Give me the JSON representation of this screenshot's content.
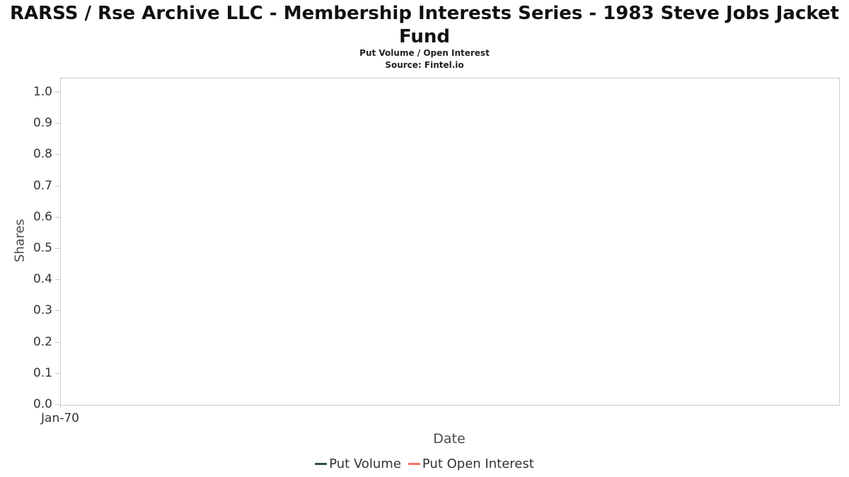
{
  "title": "RARSS / Rse Archive LLC - Membership Interests Series -  1983 Steve Jobs Jacket Fund",
  "subtitle": "Put Volume / Open Interest",
  "source": "Source: Fintel.io",
  "chart_data": {
    "type": "line",
    "title": "RARSS / Rse Archive LLC - Membership Interests Series -  1983 Steve Jobs Jacket Fund",
    "subtitle": "Put Volume / Open Interest",
    "source": "Source: Fintel.io",
    "xlabel": "Date",
    "ylabel": "Shares",
    "x_ticks": [
      "Jan-70"
    ],
    "y_ticks": [
      0.0,
      0.1,
      0.2,
      0.3,
      0.4,
      0.5,
      0.6,
      0.7,
      0.8,
      0.9,
      1.0
    ],
    "ylim": [
      0.0,
      1.05
    ],
    "grid": false,
    "legend_position": "bottom",
    "series": [
      {
        "name": "Put Volume",
        "color": "#2d4f35",
        "values": []
      },
      {
        "name": "Put Open Interest",
        "color": "#f2706b",
        "values": []
      }
    ]
  }
}
